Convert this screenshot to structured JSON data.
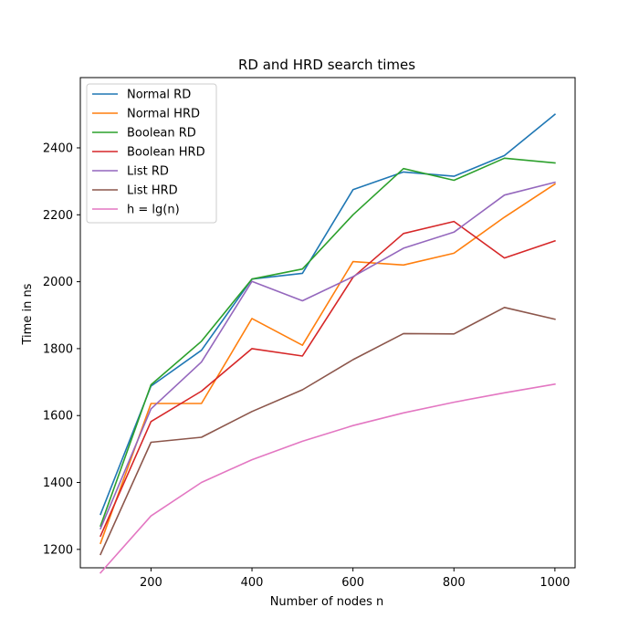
{
  "chart_data": {
    "type": "line",
    "title": "RD and HRD search times",
    "xlabel": "Number of nodes n",
    "ylabel": "Time in ns",
    "xlim": [
      60,
      1040
    ],
    "ylim": [
      1145,
      2610
    ],
    "x_ticks": [
      200,
      400,
      600,
      800,
      1000
    ],
    "x_tick_labels": [
      "200",
      "400",
      "600",
      "800",
      "1000"
    ],
    "y_ticks": [
      1200,
      1400,
      1600,
      1800,
      2000,
      2200,
      2400
    ],
    "y_tick_labels": [
      "1200",
      "1400",
      "1600",
      "1800",
      "2000",
      "2200",
      "2400"
    ],
    "grid": false,
    "legend_position": "top-left",
    "x": [
      100,
      200,
      300,
      400,
      500,
      600,
      700,
      800,
      900,
      1000
    ],
    "series": [
      {
        "name": "Normal RD",
        "color": "#1f77b4",
        "values": [
          1305,
          1688,
          1795,
          2008,
          2025,
          2275,
          2328,
          2315,
          2377,
          2500
        ]
      },
      {
        "name": "Normal HRD",
        "color": "#ff7f0e",
        "values": [
          1218,
          1636,
          1636,
          1890,
          1810,
          2060,
          2050,
          2085,
          2193,
          2292
        ]
      },
      {
        "name": "Boolean RD",
        "color": "#2ca02c",
        "values": [
          1270,
          1692,
          1822,
          2008,
          2038,
          2200,
          2338,
          2303,
          2369,
          2355
        ]
      },
      {
        "name": "Boolean HRD",
        "color": "#d62728",
        "values": [
          1240,
          1582,
          1673,
          1800,
          1778,
          2013,
          2144,
          2180,
          2071,
          2122
        ]
      },
      {
        "name": "List RD",
        "color": "#9467bd",
        "values": [
          1262,
          1620,
          1760,
          2001,
          1943,
          2015,
          2100,
          2148,
          2259,
          2297
        ]
      },
      {
        "name": "List HRD",
        "color": "#8c564b",
        "values": [
          1185,
          1520,
          1535,
          1612,
          1677,
          1767,
          1845,
          1844,
          1923,
          1888
        ]
      },
      {
        "name": "h = lg(n)",
        "color": "#e377c2",
        "values": [
          1130,
          1300,
          1400,
          1468,
          1523,
          1570,
          1608,
          1640,
          1668,
          1694
        ]
      }
    ]
  }
}
